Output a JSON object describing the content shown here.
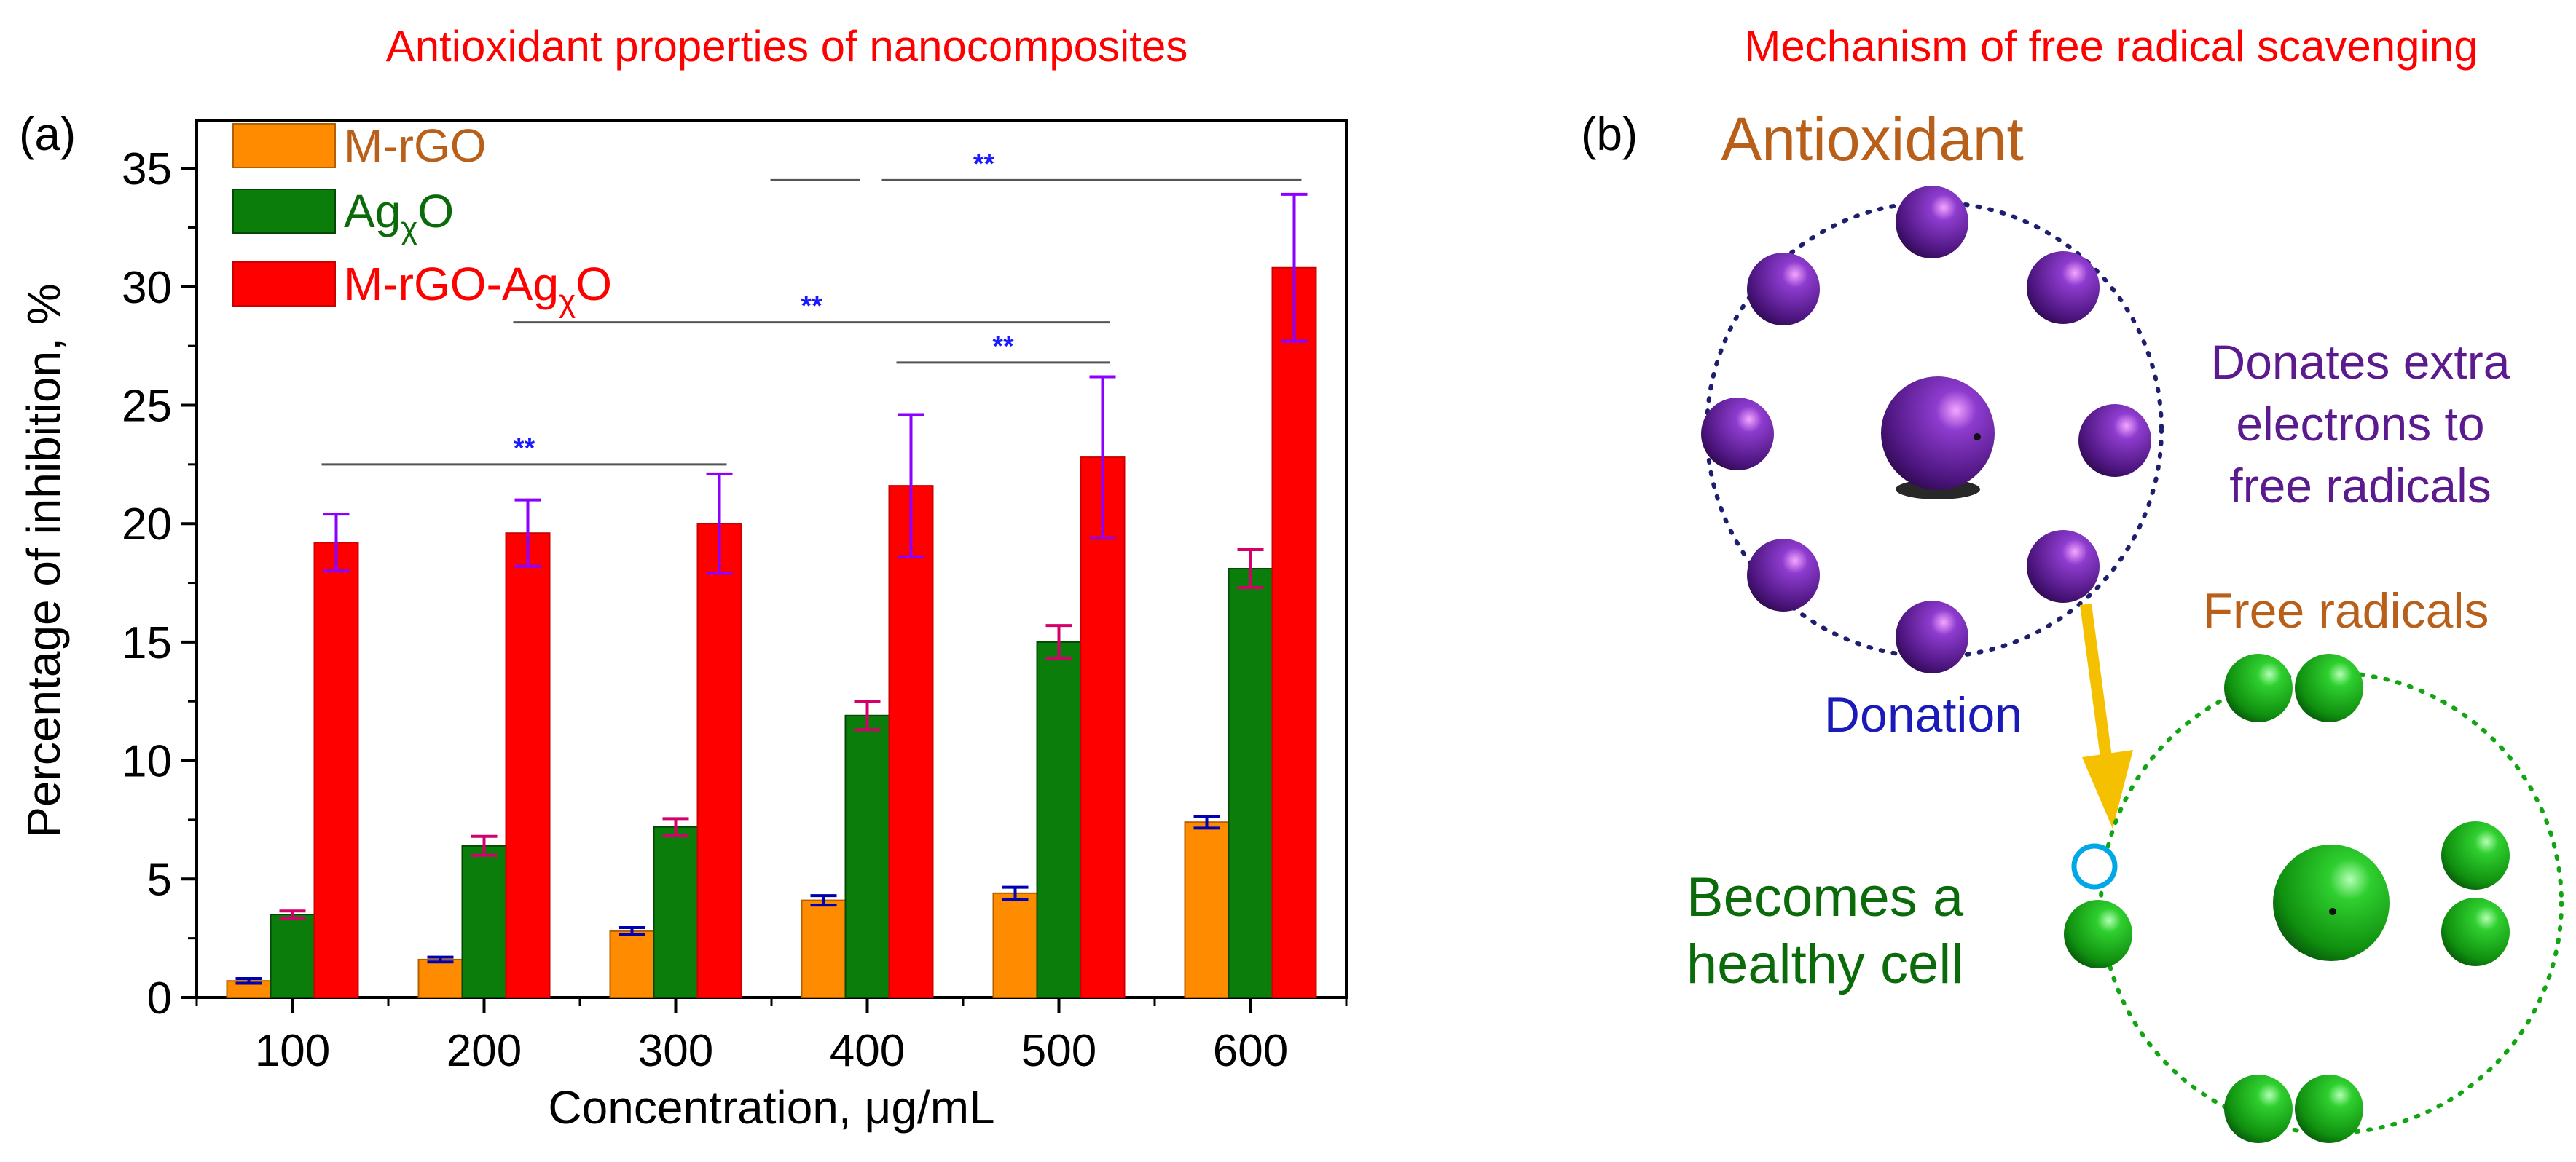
{
  "panel_a": {
    "heading": "Antioxidant properties of nanocomposites",
    "label": "(a)"
  },
  "panel_b": {
    "heading": "Mechanism of free radical scavenging",
    "label": "(b)",
    "antioxidant_title": "Antioxidant",
    "donates_text": [
      "Donates extra",
      "electrons to",
      "free radicals"
    ],
    "free_radicals_title": "Free radicals",
    "donation_label": "Donation",
    "healthy_text": [
      "Becomes a",
      "healthy cell"
    ]
  },
  "colors": {
    "heading": "#ff0000",
    "antioxidant": "#5b1a8e",
    "free_radical": "#12a512",
    "arrow": "#f5c000",
    "donation": "#1a1ab8",
    "orange_label": "#b8601a",
    "dark_green_text": "#0b6b0b"
  },
  "chart_data": {
    "type": "bar",
    "xlabel": "Concentration, μg/mL",
    "ylabel": "Percentage of inhibition, %",
    "ylim": [
      0,
      37
    ],
    "yticks": [
      0,
      5,
      10,
      15,
      20,
      25,
      30,
      35
    ],
    "categories": [
      "100",
      "200",
      "300",
      "400",
      "500",
      "600"
    ],
    "series": [
      {
        "name": "M-rGO",
        "legend_base": "M-rGO",
        "legend_sub": "",
        "legend_tail": "",
        "fill": "#ff8c00",
        "edge": "#b35f00",
        "text_color": "#b8601a",
        "err_color": "#0000b0",
        "values": [
          0.7,
          1.6,
          2.8,
          4.1,
          4.4,
          7.4
        ],
        "errors": [
          0.1,
          0.1,
          0.15,
          0.2,
          0.25,
          0.25
        ]
      },
      {
        "name": "AgχO",
        "legend_base": "Ag",
        "legend_sub": "χ",
        "legend_tail": "O",
        "fill": "#0a7d0a",
        "edge": "#054805",
        "text_color": "#0b6b0b",
        "err_color": "#d4006a",
        "values": [
          3.5,
          6.4,
          7.2,
          11.9,
          15.0,
          18.1
        ],
        "errors": [
          0.15,
          0.4,
          0.35,
          0.6,
          0.7,
          0.8
        ]
      },
      {
        "name": "M-rGO-AgχO",
        "legend_base": "M-rGO-Ag",
        "legend_sub": "χ",
        "legend_tail": "O",
        "fill": "#ff0000",
        "edge": "#cc0000",
        "text_color": "#ff0000",
        "err_color": "#8b00ff",
        "values": [
          19.2,
          19.6,
          20.0,
          21.6,
          22.8,
          30.8
        ],
        "errors": [
          1.2,
          1.4,
          2.1,
          3.0,
          3.4,
          3.1
        ]
      }
    ],
    "significance": [
      {
        "label": "**",
        "y": 22.5,
        "from": "100",
        "to": "300"
      },
      {
        "label": "**",
        "y": 28.5,
        "from": "200",
        "to": "500"
      },
      {
        "label": "**",
        "y": 26.8,
        "from": "400",
        "to": "500"
      },
      {
        "label": "**",
        "y": 34.5,
        "from": "300",
        "to": "600",
        "broken_at": "400"
      }
    ]
  }
}
